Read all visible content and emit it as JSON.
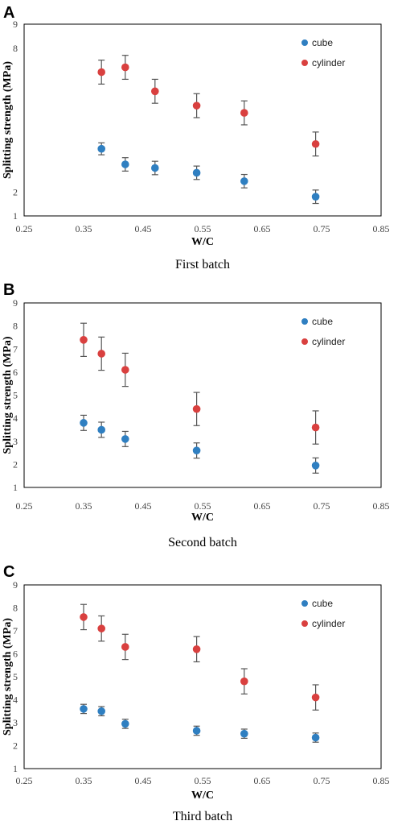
{
  "colors": {
    "cube": "#2f7fc1",
    "cylinder": "#d9403f",
    "errorbar": "#555555",
    "frame": "#000000"
  },
  "chart_data": [
    {
      "type": "scatter",
      "panel": "A",
      "caption": "First batch",
      "xlabel": "W/C",
      "ylabel": "Splitting strength (MPa)",
      "xlim": [
        0.25,
        0.85
      ],
      "ylim": [
        1,
        9
      ],
      "xticks": [
        "0.25",
        "0.35",
        "0.45",
        "0.55",
        "0.65",
        "0.75",
        "0.85"
      ],
      "yticks": [
        "1",
        "2",
        "",
        "",
        "",
        "",
        "",
        "8",
        "9"
      ],
      "legend_placement": "top-right",
      "series": [
        {
          "name": "cube",
          "color": "#2f7fc1",
          "x": [
            0.38,
            0.42,
            0.47,
            0.54,
            0.62,
            0.74
          ],
          "y": [
            3.8,
            3.15,
            3.0,
            2.8,
            2.45,
            1.8
          ],
          "err": [
            0.25,
            0.28,
            0.28,
            0.28,
            0.28,
            0.28
          ]
        },
        {
          "name": "cylinder",
          "color": "#d9403f",
          "x": [
            0.38,
            0.42,
            0.47,
            0.54,
            0.62,
            0.74
          ],
          "y": [
            7.0,
            7.2,
            6.2,
            5.6,
            5.3,
            4.0
          ],
          "err": [
            0.5,
            0.5,
            0.5,
            0.5,
            0.5,
            0.5
          ]
        }
      ]
    },
    {
      "type": "scatter",
      "panel": "B",
      "caption": "Second batch",
      "xlabel": "W/C",
      "ylabel": "Splitting strength (MPa)",
      "xlim": [
        0.25,
        0.85
      ],
      "ylim": [
        1,
        9
      ],
      "xticks": [
        "0.25",
        "0.35",
        "0.45",
        "0.55",
        "0.65",
        "0.75",
        "0.85"
      ],
      "yticks": [
        "1",
        "2",
        "3",
        "4",
        "5",
        "6",
        "7",
        "8",
        "9"
      ],
      "legend_placement": "top-right",
      "series": [
        {
          "name": "cube",
          "color": "#2f7fc1",
          "x": [
            0.35,
            0.38,
            0.42,
            0.54,
            0.74
          ],
          "y": [
            3.8,
            3.5,
            3.1,
            2.6,
            1.95
          ],
          "err": [
            0.33,
            0.33,
            0.33,
            0.33,
            0.33
          ]
        },
        {
          "name": "cylinder",
          "color": "#d9403f",
          "x": [
            0.35,
            0.38,
            0.42,
            0.54,
            0.74
          ],
          "y": [
            7.4,
            6.8,
            6.1,
            4.4,
            3.6
          ],
          "err": [
            0.72,
            0.72,
            0.72,
            0.72,
            0.72
          ]
        }
      ]
    },
    {
      "type": "scatter",
      "panel": "C",
      "caption": "Third batch",
      "xlabel": "W/C",
      "ylabel": "Splitting strength (MPa)",
      "xlim": [
        0.25,
        0.85
      ],
      "ylim": [
        1,
        9
      ],
      "xticks": [
        "0.25",
        "0.35",
        "0.45",
        "0.55",
        "0.65",
        "0.75",
        "0.85"
      ],
      "yticks": [
        "1",
        "2",
        "3",
        "4",
        "5",
        "6",
        "7",
        "8",
        "9"
      ],
      "legend_placement": "top-right",
      "series": [
        {
          "name": "cube",
          "color": "#2f7fc1",
          "x": [
            0.35,
            0.38,
            0.42,
            0.54,
            0.62,
            0.74
          ],
          "y": [
            3.6,
            3.5,
            2.95,
            2.65,
            2.52,
            2.35
          ],
          "err": [
            0.2,
            0.2,
            0.2,
            0.2,
            0.2,
            0.2
          ]
        },
        {
          "name": "cylinder",
          "color": "#d9403f",
          "x": [
            0.35,
            0.38,
            0.42,
            0.54,
            0.62,
            0.74
          ],
          "y": [
            7.6,
            7.1,
            6.3,
            6.2,
            4.8,
            4.1
          ],
          "err": [
            0.55,
            0.55,
            0.55,
            0.55,
            0.55,
            0.55
          ]
        }
      ]
    }
  ]
}
